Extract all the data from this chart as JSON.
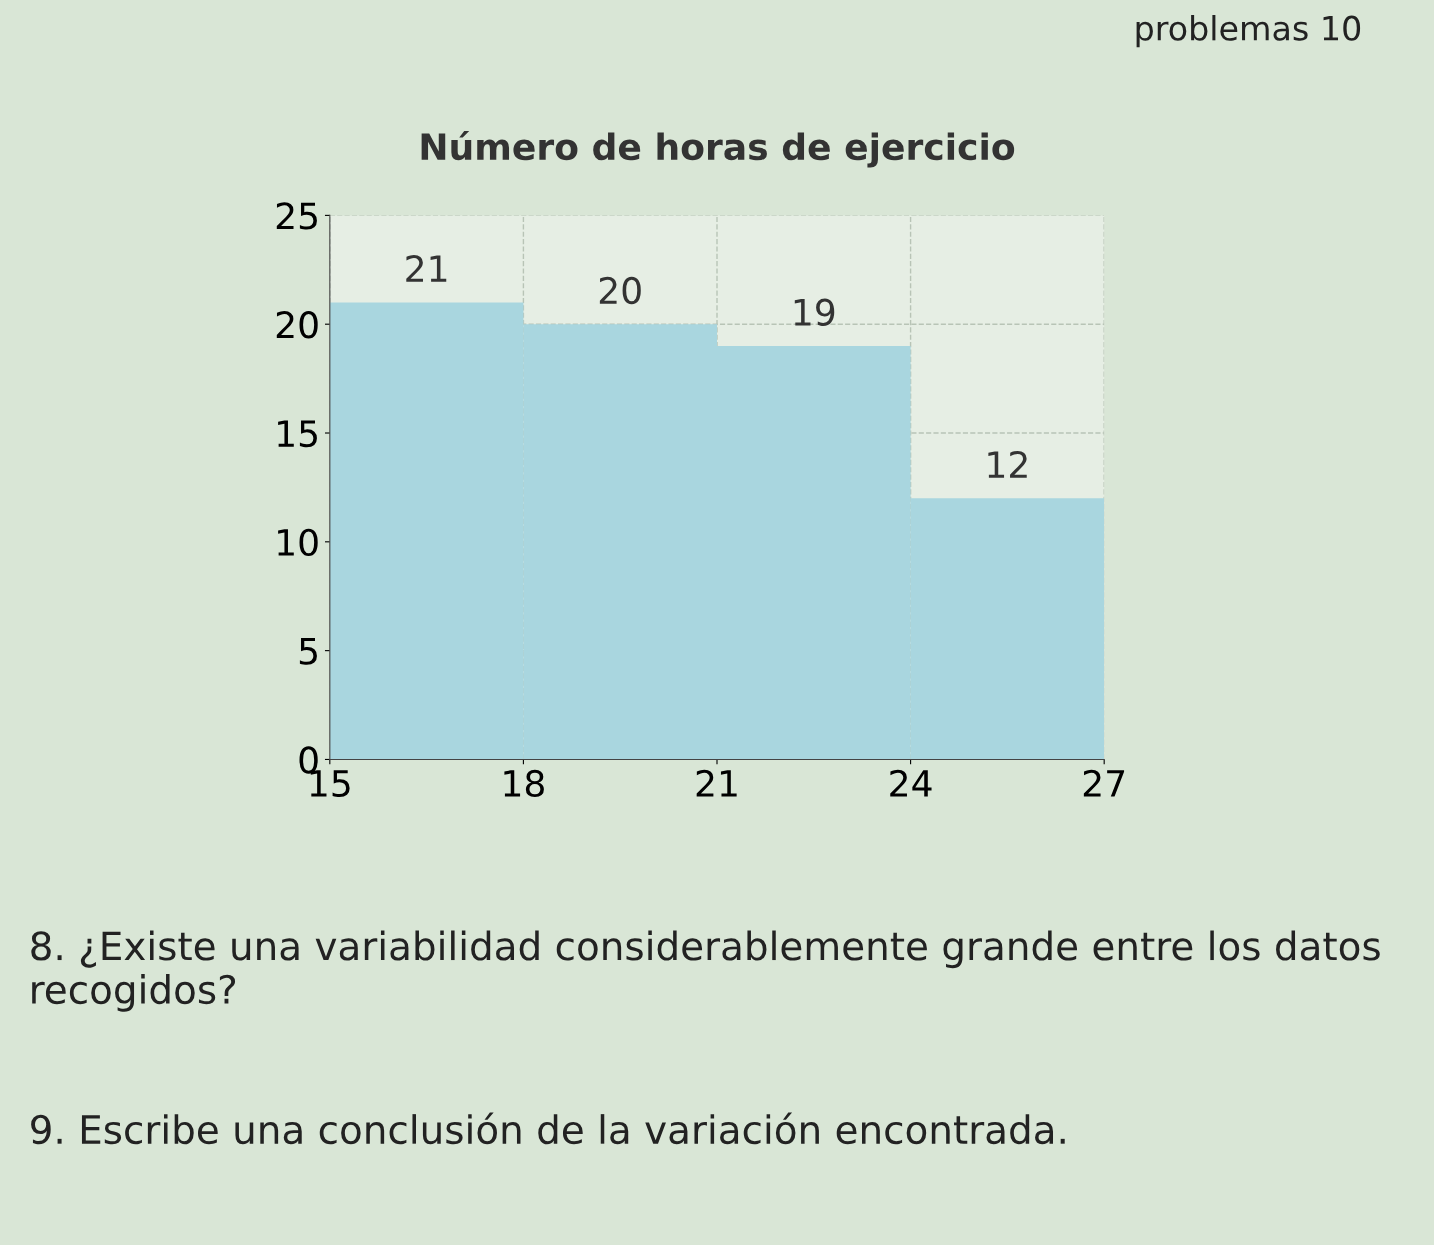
{
  "chart_data": {
    "type": "histogram",
    "title": "Número de horas de ejercicio",
    "bins": [
      15,
      18,
      21,
      24,
      27
    ],
    "values": [
      21,
      20,
      19,
      12
    ],
    "color": "#a9d6df",
    "xlim": [
      15,
      27
    ],
    "xticks": [
      15,
      18,
      21,
      24,
      27
    ],
    "ylim": [
      0,
      25
    ],
    "yticks": [
      0,
      5,
      10,
      15,
      20,
      25
    ],
    "grid": true,
    "data_labels": true,
    "annotations": [
      "problemas 10",
      "8. ¿Existe una variabilidad considerablemente grande entre los datos recogidos?",
      "9. Escribe una conclusión de la variación encontrada."
    ]
  }
}
